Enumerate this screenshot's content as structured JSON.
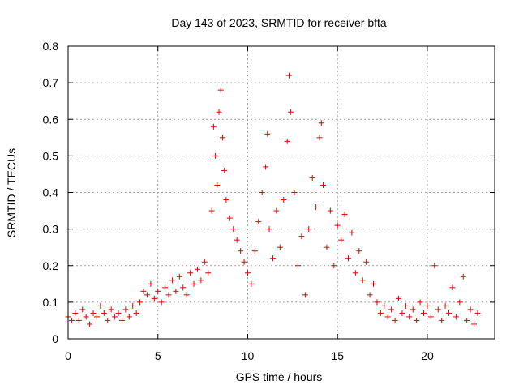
{
  "chart_data": {
    "type": "scatter",
    "title": "Day 143 of 2023, SRMTID for receiver bfta",
    "xlabel": "GPS time / hours",
    "ylabel": "SRMTID / TECUs",
    "xlim": [
      0,
      23.75
    ],
    "ylim": [
      0,
      0.8
    ],
    "xticks": [
      0,
      5,
      10,
      15,
      20
    ],
    "xtick_labels": [
      "0",
      "5",
      "10",
      "15",
      "20"
    ],
    "yticks": [
      0,
      0.1,
      0.2,
      0.3,
      0.4,
      0.5,
      0.6,
      0.7,
      0.8
    ],
    "ytick_labels": [
      "0",
      "0.1",
      "0.2",
      "0.3",
      "0.4",
      "0.5",
      "0.6",
      "0.7",
      "0.8"
    ],
    "grid": true,
    "marker": "plus",
    "color": "#e00000",
    "series": [
      {
        "name": "SRMTID",
        "points": [
          [
            0.0,
            0.06
          ],
          [
            0.2,
            0.05
          ],
          [
            0.4,
            0.07
          ],
          [
            0.6,
            0.05
          ],
          [
            0.8,
            0.08
          ],
          [
            1.0,
            0.06
          ],
          [
            1.2,
            0.04
          ],
          [
            1.4,
            0.07
          ],
          [
            1.6,
            0.06
          ],
          [
            1.8,
            0.09
          ],
          [
            2.0,
            0.07
          ],
          [
            2.2,
            0.05
          ],
          [
            2.4,
            0.08
          ],
          [
            2.6,
            0.06
          ],
          [
            2.8,
            0.07
          ],
          [
            3.0,
            0.05
          ],
          [
            3.2,
            0.08
          ],
          [
            3.4,
            0.06
          ],
          [
            3.6,
            0.09
          ],
          [
            3.8,
            0.07
          ],
          [
            4.0,
            0.1
          ],
          [
            4.2,
            0.13
          ],
          [
            4.4,
            0.12
          ],
          [
            4.6,
            0.15
          ],
          [
            4.8,
            0.11
          ],
          [
            5.0,
            0.13
          ],
          [
            5.2,
            0.1
          ],
          [
            5.4,
            0.14
          ],
          [
            5.6,
            0.12
          ],
          [
            5.8,
            0.16
          ],
          [
            6.0,
            0.13
          ],
          [
            6.2,
            0.17
          ],
          [
            6.4,
            0.14
          ],
          [
            6.6,
            0.12
          ],
          [
            6.8,
            0.18
          ],
          [
            7.0,
            0.15
          ],
          [
            7.2,
            0.19
          ],
          [
            7.4,
            0.16
          ],
          [
            7.6,
            0.21
          ],
          [
            7.8,
            0.18
          ],
          [
            8.0,
            0.35
          ],
          [
            8.1,
            0.58
          ],
          [
            8.2,
            0.5
          ],
          [
            8.3,
            0.42
          ],
          [
            8.4,
            0.62
          ],
          [
            8.5,
            0.68
          ],
          [
            8.6,
            0.55
          ],
          [
            8.7,
            0.46
          ],
          [
            8.8,
            0.38
          ],
          [
            9.0,
            0.33
          ],
          [
            9.2,
            0.3
          ],
          [
            9.4,
            0.27
          ],
          [
            9.6,
            0.24
          ],
          [
            9.8,
            0.21
          ],
          [
            10.0,
            0.18
          ],
          [
            10.2,
            0.15
          ],
          [
            10.4,
            0.24
          ],
          [
            10.6,
            0.32
          ],
          [
            10.8,
            0.4
          ],
          [
            11.0,
            0.47
          ],
          [
            11.1,
            0.56
          ],
          [
            11.2,
            0.3
          ],
          [
            11.4,
            0.22
          ],
          [
            11.6,
            0.35
          ],
          [
            11.8,
            0.25
          ],
          [
            12.0,
            0.38
          ],
          [
            12.2,
            0.54
          ],
          [
            12.3,
            0.72
          ],
          [
            12.4,
            0.62
          ],
          [
            12.6,
            0.4
          ],
          [
            12.8,
            0.2
          ],
          [
            13.0,
            0.28
          ],
          [
            13.2,
            0.12
          ],
          [
            13.4,
            0.3
          ],
          [
            13.6,
            0.44
          ],
          [
            13.8,
            0.36
          ],
          [
            14.0,
            0.55
          ],
          [
            14.1,
            0.59
          ],
          [
            14.2,
            0.42
          ],
          [
            14.4,
            0.25
          ],
          [
            14.6,
            0.35
          ],
          [
            14.8,
            0.2
          ],
          [
            15.0,
            0.31
          ],
          [
            15.2,
            0.27
          ],
          [
            15.4,
            0.34
          ],
          [
            15.6,
            0.22
          ],
          [
            15.8,
            0.29
          ],
          [
            16.0,
            0.18
          ],
          [
            16.2,
            0.24
          ],
          [
            16.4,
            0.16
          ],
          [
            16.6,
            0.21
          ],
          [
            16.8,
            0.12
          ],
          [
            17.0,
            0.15
          ],
          [
            17.2,
            0.1
          ],
          [
            17.4,
            0.07
          ],
          [
            17.6,
            0.09
          ],
          [
            17.8,
            0.06
          ],
          [
            18.0,
            0.08
          ],
          [
            18.2,
            0.05
          ],
          [
            18.4,
            0.11
          ],
          [
            18.6,
            0.07
          ],
          [
            18.8,
            0.09
          ],
          [
            19.0,
            0.06
          ],
          [
            19.2,
            0.08
          ],
          [
            19.4,
            0.05
          ],
          [
            19.6,
            0.1
          ],
          [
            19.8,
            0.07
          ],
          [
            20.0,
            0.09
          ],
          [
            20.2,
            0.06
          ],
          [
            20.4,
            0.2
          ],
          [
            20.6,
            0.08
          ],
          [
            20.8,
            0.05
          ],
          [
            21.0,
            0.09
          ],
          [
            21.2,
            0.07
          ],
          [
            21.4,
            0.14
          ],
          [
            21.6,
            0.06
          ],
          [
            21.8,
            0.1
          ],
          [
            22.0,
            0.17
          ],
          [
            22.2,
            0.05
          ],
          [
            22.4,
            0.08
          ],
          [
            22.6,
            0.04
          ],
          [
            22.8,
            0.07
          ]
        ]
      }
    ]
  }
}
